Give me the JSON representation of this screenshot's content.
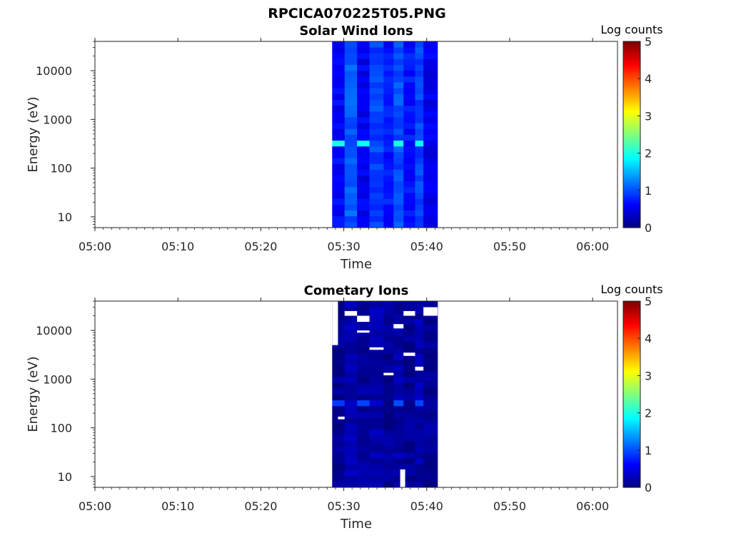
{
  "figure_title": "RPCICA070225T05.PNG",
  "colors": {
    "colormap": [
      "#00007f",
      "#0000ff",
      "#007fff",
      "#00ffff",
      "#7fff7f",
      "#ffff00",
      "#ff7f00",
      "#ff0000",
      "#7f0000"
    ]
  },
  "chart_data": [
    {
      "type": "heatmap",
      "title": "Solar Wind Ions",
      "xlabel": "Time",
      "ylabel": "Energy (eV)",
      "yscale": "log",
      "ylim": [
        6,
        40000
      ],
      "x_ticks": [
        "05:00",
        "05:10",
        "05:20",
        "05:30",
        "05:40",
        "05:50",
        "06:00"
      ],
      "x_range_minutes": [
        0,
        63
      ],
      "y_ticks": [
        10,
        100,
        1000,
        10000
      ],
      "y_tick_labels": [
        "10",
        "100",
        "1000",
        "10000"
      ],
      "colorbar": {
        "label": "Log counts",
        "min": 0,
        "max": 5,
        "ticks": [
          "0",
          "1",
          "2",
          "3",
          "4",
          "5"
        ]
      },
      "data_time_start_minutes": 28.6,
      "data_time_end_minutes": 41.3,
      "columns": [
        {
          "start": 28.6,
          "end": 30.1,
          "base": 0.62,
          "peak": 2.0
        },
        {
          "start": 30.1,
          "end": 31.6,
          "base": 1.05,
          "peak": 0
        },
        {
          "start": 31.6,
          "end": 33.1,
          "base": 0.55,
          "peak": 1.9
        },
        {
          "start": 33.1,
          "end": 34.8,
          "base": 0.95,
          "peak": 0
        },
        {
          "start": 34.8,
          "end": 36.0,
          "base": 0.72,
          "peak": 0
        },
        {
          "start": 36.0,
          "end": 37.2,
          "base": 1.0,
          "peak": 2.0
        },
        {
          "start": 37.2,
          "end": 38.6,
          "base": 0.7,
          "peak": 0
        },
        {
          "start": 38.6,
          "end": 39.6,
          "base": 0.95,
          "peak": 1.9
        },
        {
          "start": 39.6,
          "end": 41.3,
          "base": 0.55,
          "peak": 0
        }
      ],
      "peak_energy_eV": 340,
      "grid": false
    },
    {
      "type": "heatmap",
      "title": "Cometary Ions",
      "xlabel": "Time",
      "ylabel": "Energy (eV)",
      "yscale": "log",
      "ylim": [
        6,
        40000
      ],
      "x_ticks": [
        "05:00",
        "05:10",
        "05:20",
        "05:30",
        "05:40",
        "05:50",
        "06:00"
      ],
      "x_range_minutes": [
        0,
        63
      ],
      "y_ticks": [
        10,
        100,
        1000,
        10000
      ],
      "y_tick_labels": [
        "10",
        "100",
        "1000",
        "10000"
      ],
      "colorbar": {
        "label": "Log counts",
        "min": 0,
        "max": 5,
        "ticks": [
          "0",
          "1",
          "2",
          "3",
          "4",
          "5"
        ]
      },
      "data_time_start_minutes": 28.6,
      "data_time_end_minutes": 41.3,
      "columns": [
        {
          "start": 28.6,
          "end": 30.1,
          "base": 0.1,
          "peak": 0.9
        },
        {
          "start": 30.1,
          "end": 31.6,
          "base": 0.25,
          "peak": 0
        },
        {
          "start": 31.6,
          "end": 33.1,
          "base": 0.12,
          "peak": 0.95
        },
        {
          "start": 33.1,
          "end": 34.8,
          "base": 0.22,
          "peak": 0
        },
        {
          "start": 34.8,
          "end": 36.0,
          "base": 0.1,
          "peak": 0
        },
        {
          "start": 36.0,
          "end": 37.2,
          "base": 0.2,
          "peak": 1.0
        },
        {
          "start": 37.2,
          "end": 38.6,
          "base": 0.1,
          "peak": 0
        },
        {
          "start": 38.6,
          "end": 39.6,
          "base": 0.22,
          "peak": 0.95
        },
        {
          "start": 39.6,
          "end": 41.3,
          "base": 0.1,
          "peak": 0
        }
      ],
      "peak_energy_eV": 340,
      "empty_bins": [
        {
          "t0": 28.6,
          "t1": 29.3,
          "e0": 5000,
          "e1": 40000
        },
        {
          "t0": 29.3,
          "t1": 30.1,
          "e0": 150,
          "e1": 170
        },
        {
          "t0": 30.1,
          "t1": 31.6,
          "e0": 20000,
          "e1": 25000
        },
        {
          "t0": 31.6,
          "t1": 33.1,
          "e0": 15000,
          "e1": 20000
        },
        {
          "t0": 31.6,
          "t1": 33.1,
          "e0": 9000,
          "e1": 10000
        },
        {
          "t0": 33.1,
          "t1": 34.8,
          "e0": 4000,
          "e1": 4500
        },
        {
          "t0": 34.8,
          "t1": 36.0,
          "e0": 1200,
          "e1": 1350
        },
        {
          "t0": 36.0,
          "t1": 37.2,
          "e0": 11000,
          "e1": 13500
        },
        {
          "t0": 36.8,
          "t1": 37.4,
          "e0": 6,
          "e1": 14
        },
        {
          "t0": 37.2,
          "t1": 38.6,
          "e0": 20000,
          "e1": 25000
        },
        {
          "t0": 37.2,
          "t1": 38.6,
          "e0": 3000,
          "e1": 3500
        },
        {
          "t0": 38.6,
          "t1": 39.6,
          "e0": 1500,
          "e1": 1800
        },
        {
          "t0": 39.6,
          "t1": 41.3,
          "e0": 20000,
          "e1": 30000
        }
      ],
      "grid": false
    }
  ]
}
